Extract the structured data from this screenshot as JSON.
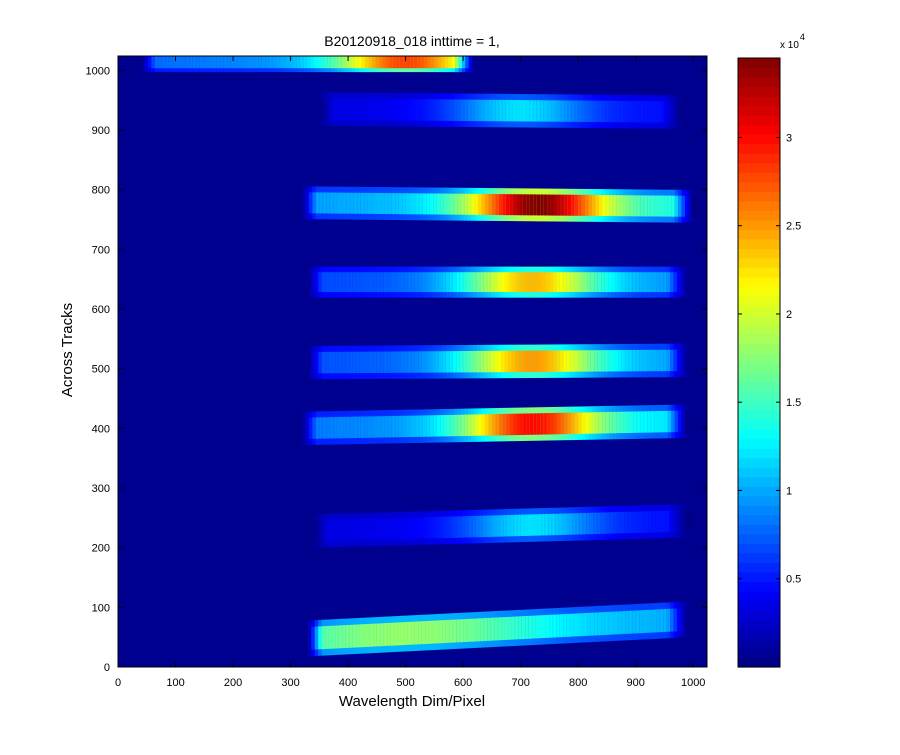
{
  "chart_data": {
    "type": "heatmap",
    "title": "B20120918_018 inttime = 1,",
    "xlabel": "Wavelength Dim/Pixel",
    "ylabel": "Across Tracks",
    "xlim": [
      0,
      1024
    ],
    "ylim": [
      0,
      1024
    ],
    "x_ticks": [
      0,
      100,
      200,
      300,
      400,
      500,
      600,
      700,
      800,
      900,
      1000
    ],
    "y_ticks": [
      0,
      100,
      200,
      300,
      400,
      500,
      600,
      700,
      800,
      900,
      1000
    ],
    "colormap": "jet",
    "background_color": "#00008f",
    "colorbar": {
      "min": 0,
      "max": 34500,
      "ticks": [
        5000,
        10000,
        15000,
        20000,
        25000,
        30000
      ],
      "tick_labels": [
        "0.5",
        "1",
        "1.5",
        "2",
        "2.5",
        "3"
      ],
      "exponent_label": "x 10",
      "exponent": "4"
    },
    "tracks": [
      {
        "track": 1,
        "y_left": 48,
        "y_right": 80,
        "width": 60,
        "x_start": 330,
        "x_end": 990,
        "peak_value": 18000,
        "peak_x": 500
      },
      {
        "track": 2,
        "y_left": 228,
        "y_right": 245,
        "width": 56,
        "x_start": 340,
        "x_end": 990,
        "peak_value": 12000,
        "peak_x": 720
      },
      {
        "track": 3,
        "y_left": 400,
        "y_right": 412,
        "width": 56,
        "x_start": 320,
        "x_end": 990,
        "peak_value": 30000,
        "peak_x": 720
      },
      {
        "track": 4,
        "y_left": 510,
        "y_right": 514,
        "width": 56,
        "x_start": 330,
        "x_end": 990,
        "peak_value": 25000,
        "peak_x": 720
      },
      {
        "track": 5,
        "y_left": 645,
        "y_right": 645,
        "width": 52,
        "x_start": 330,
        "x_end": 990,
        "peak_value": 24000,
        "peak_x": 720
      },
      {
        "track": 6,
        "y_left": 778,
        "y_right": 772,
        "width": 55,
        "x_start": 320,
        "x_end": 1000,
        "peak_value": 34500,
        "peak_x": 730
      },
      {
        "track": 7,
        "y_left": 935,
        "y_right": 930,
        "width": 56,
        "x_start": 350,
        "x_end": 980,
        "peak_value": 12000,
        "peak_x": 700
      },
      {
        "track": 8,
        "y_left": 1015,
        "y_right": 1015,
        "width": 36,
        "x_start": 40,
        "x_end": 620,
        "peak_value": 28000,
        "peak_x": 500
      }
    ]
  }
}
